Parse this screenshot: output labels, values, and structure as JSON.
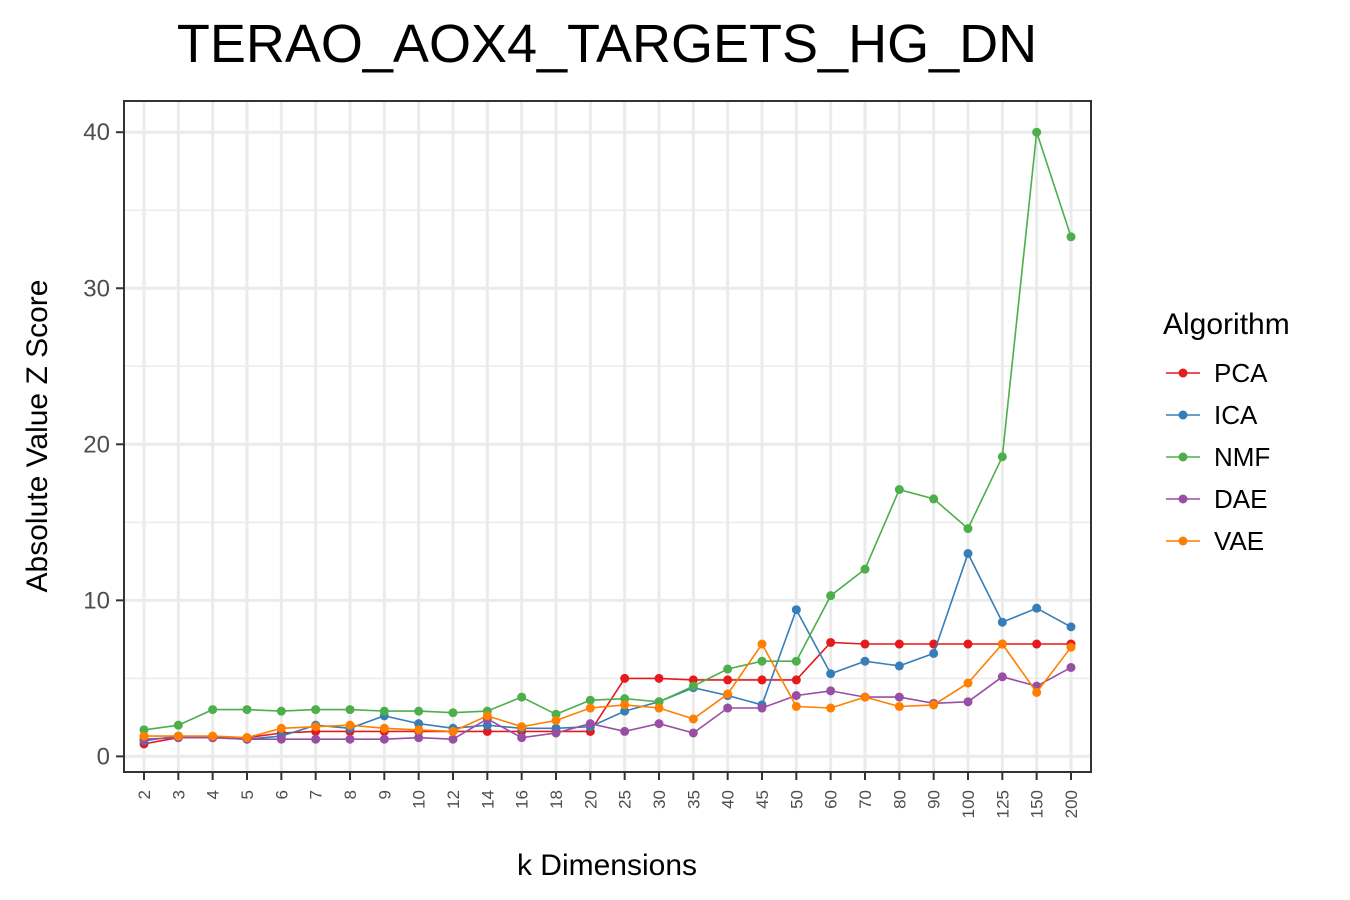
{
  "chart_data": {
    "type": "line",
    "title": "TERAO_AOX4_TARGETS_HG_DN",
    "xlabel": "k Dimensions",
    "ylabel": "Absolute Value Z Score",
    "categories": [
      "2",
      "3",
      "4",
      "5",
      "6",
      "7",
      "8",
      "9",
      "10",
      "12",
      "14",
      "16",
      "18",
      "20",
      "25",
      "30",
      "35",
      "40",
      "45",
      "50",
      "60",
      "70",
      "80",
      "90",
      "100",
      "125",
      "150",
      "200"
    ],
    "ylim": [
      -1,
      42
    ],
    "yticks": [
      0,
      10,
      20,
      30,
      40
    ],
    "yticks_text": [
      "0",
      "10",
      "20",
      "30",
      "40"
    ],
    "grid": true,
    "legend": {
      "title": "Algorithm",
      "position": "right"
    },
    "series": [
      {
        "name": "PCA",
        "color": "#E41A1C",
        "values": [
          0.8,
          1.2,
          1.2,
          1.2,
          1.5,
          1.6,
          1.6,
          1.6,
          1.6,
          1.6,
          1.6,
          1.6,
          1.6,
          1.6,
          5.0,
          5.0,
          4.9,
          4.9,
          4.9,
          4.9,
          7.3,
          7.2,
          7.2,
          7.2,
          7.2,
          7.2,
          7.2,
          7.2
        ]
      },
      {
        "name": "ICA",
        "color": "#377EB8",
        "values": [
          1.0,
          1.3,
          1.2,
          1.1,
          1.3,
          2.0,
          1.8,
          2.6,
          2.1,
          1.8,
          2.0,
          1.8,
          1.8,
          1.9,
          2.9,
          3.5,
          4.4,
          3.9,
          3.3,
          9.4,
          5.3,
          6.1,
          5.8,
          6.6,
          13.0,
          8.6,
          9.5,
          8.3
        ]
      },
      {
        "name": "NMF",
        "color": "#4DAF4A",
        "values": [
          1.7,
          2.0,
          3.0,
          3.0,
          2.9,
          3.0,
          3.0,
          2.9,
          2.9,
          2.8,
          2.9,
          3.8,
          2.7,
          3.6,
          3.7,
          3.5,
          4.5,
          5.6,
          6.1,
          6.1,
          10.3,
          12.0,
          17.1,
          16.5,
          14.6,
          19.2,
          40.0,
          33.3
        ]
      },
      {
        "name": "DAE",
        "color": "#984EA3",
        "values": [
          1.1,
          1.2,
          1.2,
          1.1,
          1.1,
          1.1,
          1.1,
          1.1,
          1.2,
          1.1,
          2.4,
          1.2,
          1.5,
          2.1,
          1.6,
          2.1,
          1.5,
          3.1,
          3.1,
          3.9,
          4.2,
          3.8,
          3.8,
          3.4,
          3.5,
          5.1,
          4.5,
          5.7
        ]
      },
      {
        "name": "VAE",
        "color": "#FF7F00",
        "values": [
          1.3,
          1.3,
          1.3,
          1.2,
          1.8,
          1.9,
          2.0,
          1.8,
          1.7,
          1.6,
          2.6,
          1.9,
          2.3,
          3.1,
          3.3,
          3.1,
          2.4,
          4.0,
          7.2,
          3.2,
          3.1,
          3.8,
          3.2,
          3.3,
          4.7,
          7.2,
          4.1,
          7.0
        ]
      }
    ]
  }
}
